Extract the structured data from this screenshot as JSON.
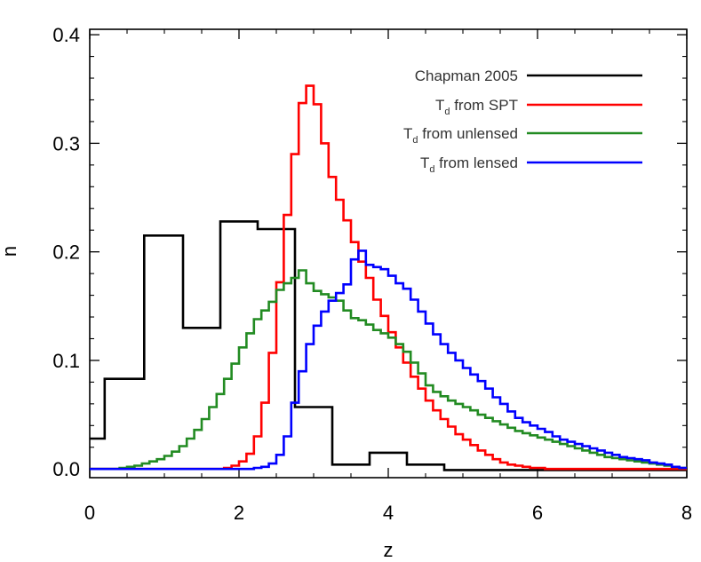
{
  "chart_data": {
    "type": "line",
    "style": "step-histogram",
    "xlabel": "z",
    "ylabel": "n",
    "xlim": [
      0,
      8
    ],
    "ylim": [
      -0.008,
      0.405
    ],
    "xticks": [
      0,
      2,
      4,
      6,
      8
    ],
    "xtick_labels": [
      "0",
      "2",
      "4",
      "6",
      "8"
    ],
    "yticks": [
      0.0,
      0.1,
      0.2,
      0.3,
      0.4
    ],
    "ytick_labels": [
      "0.0",
      "0.1",
      "0.2",
      "0.3",
      "0.4"
    ],
    "legend_position": "top-right",
    "series": [
      {
        "name": "Chapman 2005",
        "legend_main": "Chapman 2005",
        "legend_sub": "",
        "legend_suffix": "",
        "color": "#000000",
        "edges": [
          0,
          0.2,
          0.73,
          1.25,
          1.75,
          2.25,
          2.75,
          3.25,
          3.75,
          4.25,
          4.75,
          8.0
        ],
        "values": [
          0.028,
          0.083,
          0.215,
          0.13,
          0.228,
          0.221,
          0.057,
          0.004,
          0.015,
          0.004,
          -0.001
        ]
      },
      {
        "name": "Td from SPT",
        "legend_main": "T",
        "legend_sub": "d",
        "legend_suffix": " from SPT",
        "color": "#ff0000",
        "bin_width": 0.1,
        "x0": 0.0,
        "values": [
          0,
          0,
          0,
          0,
          0,
          0,
          0,
          0,
          0,
          0,
          0,
          0,
          0,
          0,
          0,
          0,
          0,
          0,
          0.001,
          0.003,
          0.007,
          0.014,
          0.03,
          0.061,
          0.107,
          0.172,
          0.234,
          0.29,
          0.337,
          0.353,
          0.336,
          0.3,
          0.269,
          0.248,
          0.229,
          0.209,
          0.191,
          0.176,
          0.156,
          0.141,
          0.126,
          0.112,
          0.098,
          0.085,
          0.074,
          0.063,
          0.054,
          0.046,
          0.039,
          0.032,
          0.027,
          0.022,
          0.017,
          0.013,
          0.009,
          0.006,
          0.004,
          0.003,
          0.002,
          0.001,
          0.001,
          0,
          0,
          0,
          0,
          0,
          0,
          0,
          0,
          0,
          0,
          0,
          0,
          0,
          0,
          0,
          0,
          0,
          0,
          0
        ]
      },
      {
        "name": "Td from unlensed",
        "legend_main": "T",
        "legend_sub": "d",
        "legend_suffix": " from unlensed",
        "color": "#228b22",
        "bin_width": 0.1,
        "x0": 0.0,
        "values": [
          0,
          0,
          0,
          0,
          0.001,
          0.002,
          0.003,
          0.005,
          0.007,
          0.009,
          0.012,
          0.016,
          0.021,
          0.028,
          0.036,
          0.046,
          0.057,
          0.069,
          0.083,
          0.097,
          0.112,
          0.125,
          0.138,
          0.146,
          0.154,
          0.165,
          0.171,
          0.176,
          0.183,
          0.171,
          0.164,
          0.161,
          0.158,
          0.155,
          0.146,
          0.139,
          0.137,
          0.133,
          0.128,
          0.125,
          0.121,
          0.115,
          0.108,
          0.098,
          0.088,
          0.077,
          0.071,
          0.067,
          0.063,
          0.06,
          0.057,
          0.054,
          0.05,
          0.047,
          0.044,
          0.041,
          0.038,
          0.035,
          0.033,
          0.031,
          0.029,
          0.027,
          0.025,
          0.023,
          0.021,
          0.019,
          0.017,
          0.015,
          0.013,
          0.011,
          0.01,
          0.009,
          0.008,
          0.007,
          0.006,
          0.005,
          0.004,
          0.003,
          0.002,
          0.001
        ]
      },
      {
        "name": "Td from lensed",
        "legend_main": "T",
        "legend_sub": "d",
        "legend_suffix": " from lensed",
        "color": "#0000ff",
        "bin_width": 0.1,
        "x0": 0.0,
        "values": [
          0,
          0,
          0,
          0,
          0,
          0,
          0,
          0,
          0,
          0,
          0,
          0,
          0,
          0,
          0,
          0,
          0,
          0,
          0,
          0,
          0,
          0,
          0.001,
          0.002,
          0.005,
          0.013,
          0.03,
          0.061,
          0.09,
          0.115,
          0.132,
          0.145,
          0.155,
          0.162,
          0.17,
          0.193,
          0.201,
          0.188,
          0.186,
          0.184,
          0.178,
          0.171,
          0.166,
          0.156,
          0.145,
          0.134,
          0.124,
          0.115,
          0.107,
          0.1,
          0.093,
          0.087,
          0.081,
          0.074,
          0.066,
          0.06,
          0.053,
          0.047,
          0.043,
          0.04,
          0.037,
          0.034,
          0.03,
          0.027,
          0.025,
          0.023,
          0.021,
          0.019,
          0.017,
          0.015,
          0.013,
          0.011,
          0.01,
          0.009,
          0.008,
          0.006,
          0.005,
          0.004,
          0.002,
          0.001
        ]
      }
    ]
  }
}
